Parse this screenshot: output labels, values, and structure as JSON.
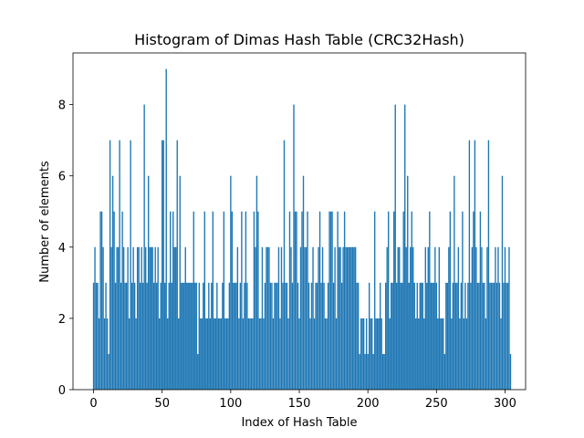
{
  "chart_data": {
    "type": "bar",
    "title": "Histogram of Dimas Hash Table (CRC32Hash)",
    "xlabel": "Index of Hash Table",
    "ylabel": "Number of elements",
    "xlim": [
      -15,
      315
    ],
    "ylim": [
      0,
      9.45
    ],
    "xticks": [
      0,
      50,
      100,
      150,
      200,
      250,
      300
    ],
    "yticks": [
      0,
      2,
      4,
      6,
      8
    ],
    "xtick_labels": [
      "0",
      "50",
      "100",
      "150",
      "200",
      "250",
      "300"
    ],
    "ytick_labels": [
      "0",
      "2",
      "4",
      "6",
      "8"
    ],
    "grid": false,
    "legend": "none",
    "bar_color": "#1f77b4",
    "x_start": 0,
    "values": [
      3,
      4,
      3,
      3,
      2,
      5,
      5,
      4,
      2,
      3,
      2,
      1,
      7,
      4,
      6,
      5,
      3,
      4,
      4,
      7,
      3,
      5,
      4,
      3,
      3,
      4,
      2,
      7,
      3,
      4,
      3,
      2,
      4,
      4,
      3,
      4,
      3,
      8,
      4,
      3,
      6,
      4,
      4,
      4,
      3,
      4,
      3,
      4,
      2,
      3,
      7,
      7,
      3,
      9,
      2,
      3,
      5,
      3,
      5,
      4,
      4,
      7,
      2,
      6,
      3,
      3,
      3,
      4,
      3,
      3,
      3,
      3,
      3,
      5,
      3,
      3,
      1,
      3,
      2,
      2,
      3,
      5,
      2,
      2,
      3,
      2,
      3,
      5,
      2,
      2,
      3,
      2,
      2,
      2,
      3,
      5,
      2,
      2,
      2,
      3,
      6,
      5,
      3,
      3,
      3,
      4,
      2,
      3,
      5,
      2,
      3,
      5,
      3,
      2,
      2,
      2,
      2,
      5,
      4,
      6,
      5,
      2,
      2,
      4,
      2,
      3,
      4,
      4,
      4,
      3,
      3,
      2,
      3,
      3,
      3,
      4,
      2,
      4,
      3,
      7,
      3,
      3,
      2,
      5,
      4,
      3,
      8,
      5,
      5,
      3,
      2,
      4,
      5,
      6,
      4,
      4,
      5,
      3,
      2,
      3,
      4,
      2,
      3,
      3,
      4,
      5,
      3,
      4,
      3,
      2,
      2,
      3,
      5,
      5,
      5,
      3,
      4,
      2,
      5,
      4,
      4,
      3,
      4,
      5,
      4,
      4,
      4,
      4,
      4,
      4,
      4,
      4,
      3,
      3,
      1,
      2,
      2,
      2,
      1,
      2,
      1,
      3,
      2,
      2,
      1,
      5,
      2,
      2,
      2,
      3,
      2,
      1,
      1,
      3,
      4,
      5,
      2,
      3,
      3,
      5,
      8,
      3,
      4,
      4,
      3,
      3,
      5,
      8,
      4,
      6,
      3,
      4,
      5,
      4,
      3,
      2,
      3,
      2,
      3,
      3,
      3,
      2,
      4,
      3,
      4,
      5,
      3,
      3,
      3,
      4,
      3,
      2,
      4,
      2,
      2,
      2,
      1,
      3,
      3,
      4,
      5,
      2,
      3,
      6,
      3,
      3,
      4,
      2,
      3,
      5,
      2,
      3,
      2,
      3,
      7,
      3,
      4,
      5,
      7,
      4,
      3,
      3,
      5,
      4,
      3,
      3,
      2,
      4,
      7,
      3,
      3,
      3,
      3,
      4,
      3,
      4,
      3,
      2,
      6,
      3,
      4,
      3,
      3,
      4,
      1
    ],
    "series": [
      {
        "values": []
      }
    ]
  }
}
